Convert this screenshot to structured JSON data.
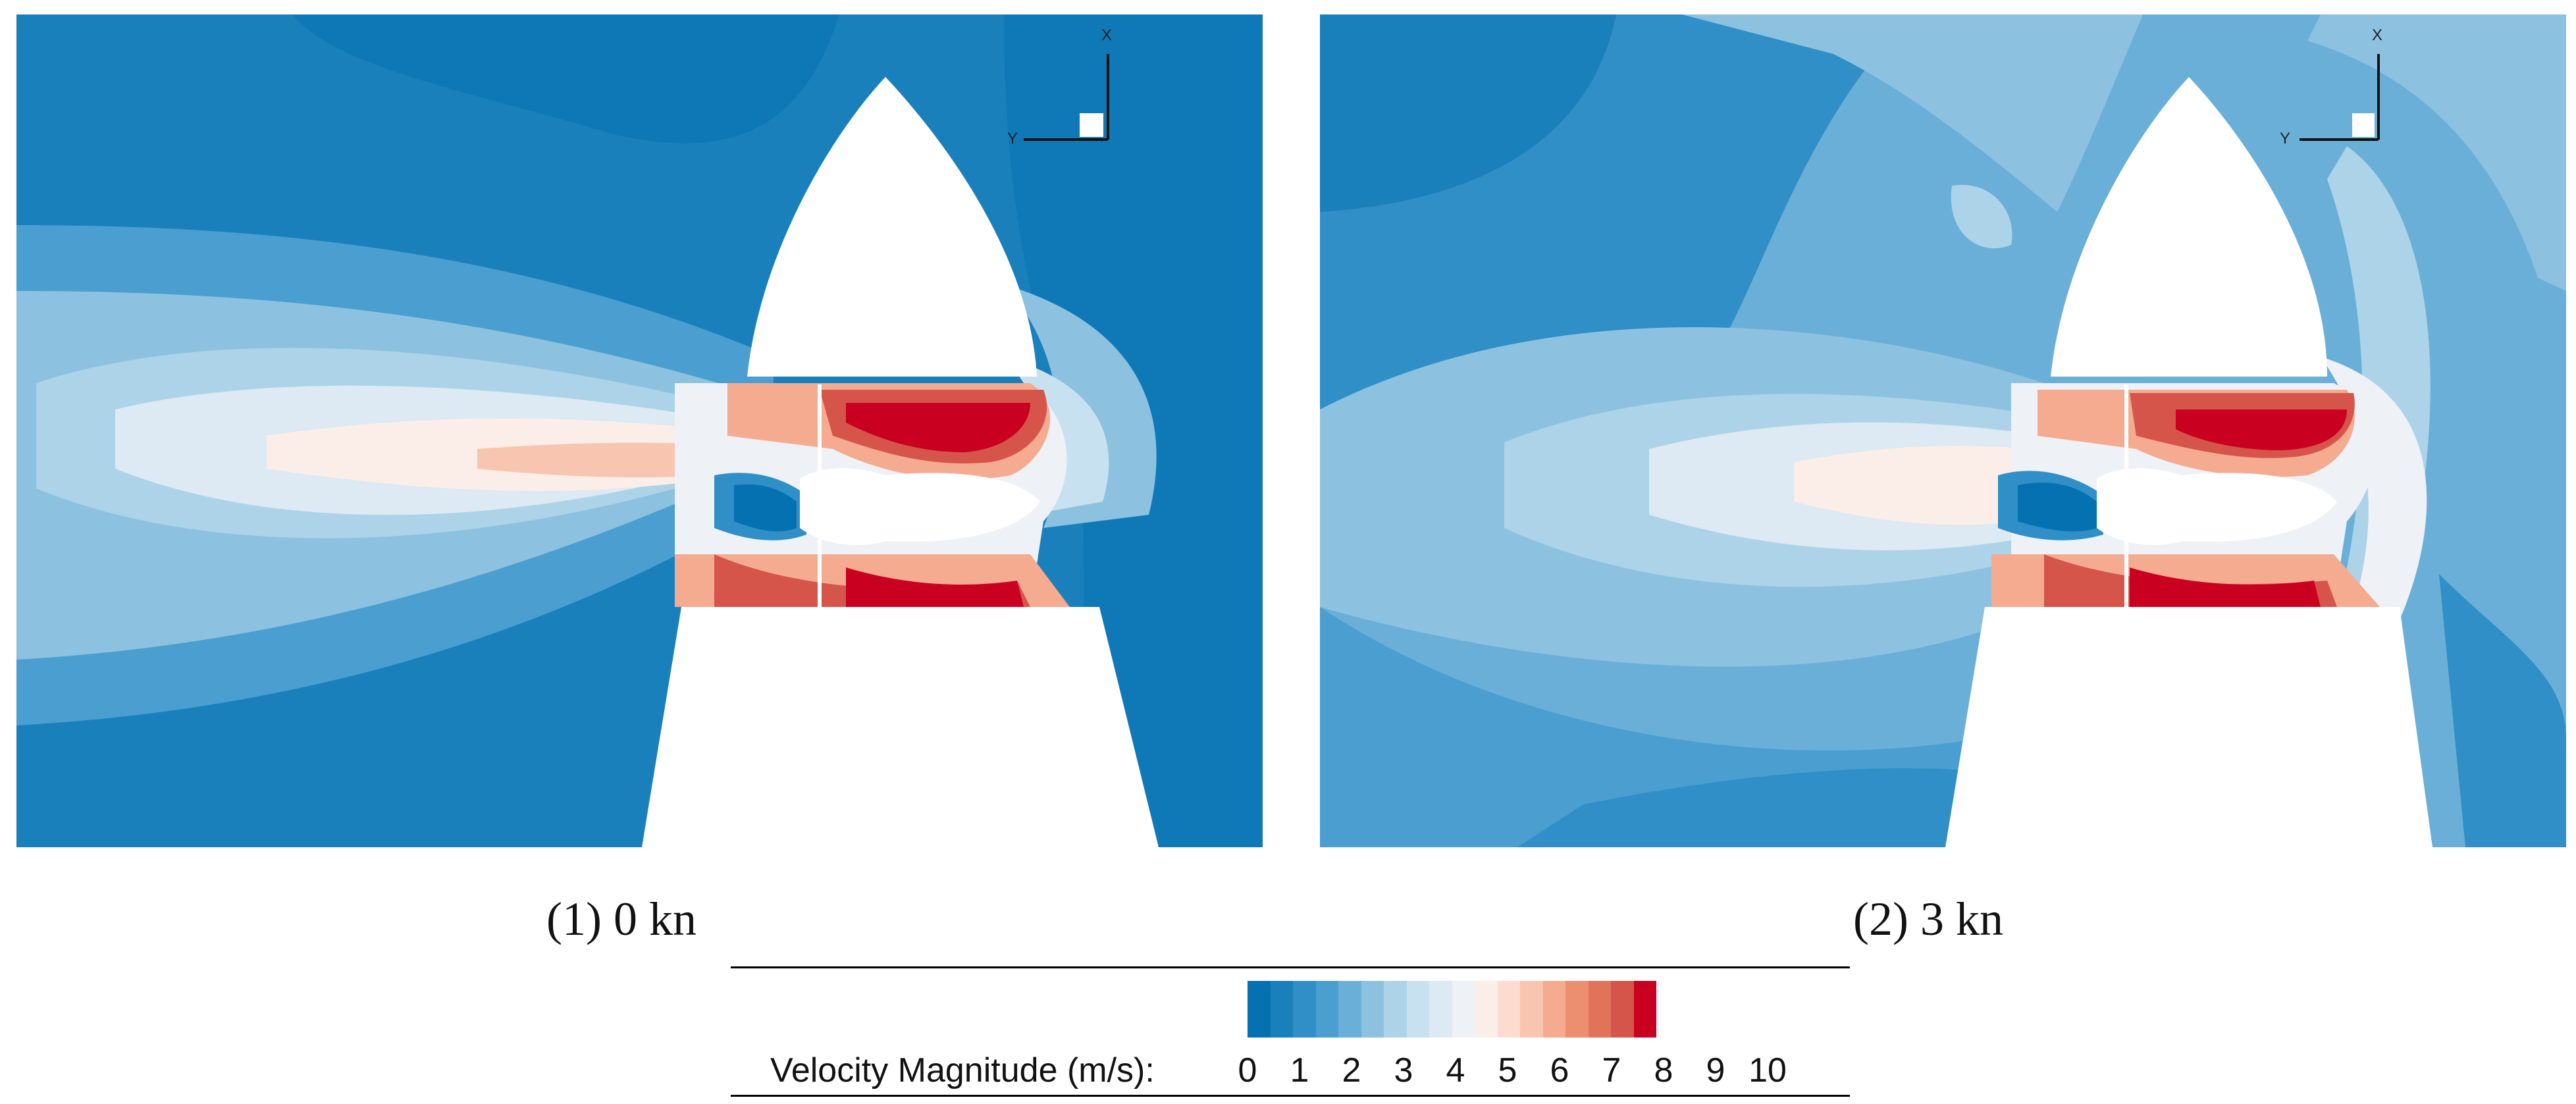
{
  "panels": [
    {
      "caption": "(1) 0 kn",
      "axes": {
        "x": "X",
        "y": "Y"
      }
    },
    {
      "caption": "(2) 3 kn",
      "axes": {
        "x": "X",
        "y": "Y"
      }
    }
  ],
  "legend": {
    "title": "Velocity Magnitude (m/s):",
    "ticks": [
      "0",
      "1",
      "2",
      "3",
      "4",
      "5",
      "6",
      "7",
      "8",
      "9",
      "10"
    ],
    "colors": [
      "#0571b0",
      "#1a80bc",
      "#2f8fc6",
      "#4a9fd0",
      "#6aafd8",
      "#8cc2e0",
      "#acd3e8",
      "#c8e1f0",
      "#dde9f3",
      "#eef1f6",
      "#fbeee9",
      "#fbdccf",
      "#f8c5b0",
      "#f4ab8f",
      "#ec8f71",
      "#e1735b",
      "#d6554b",
      "#ca0020"
    ]
  }
}
